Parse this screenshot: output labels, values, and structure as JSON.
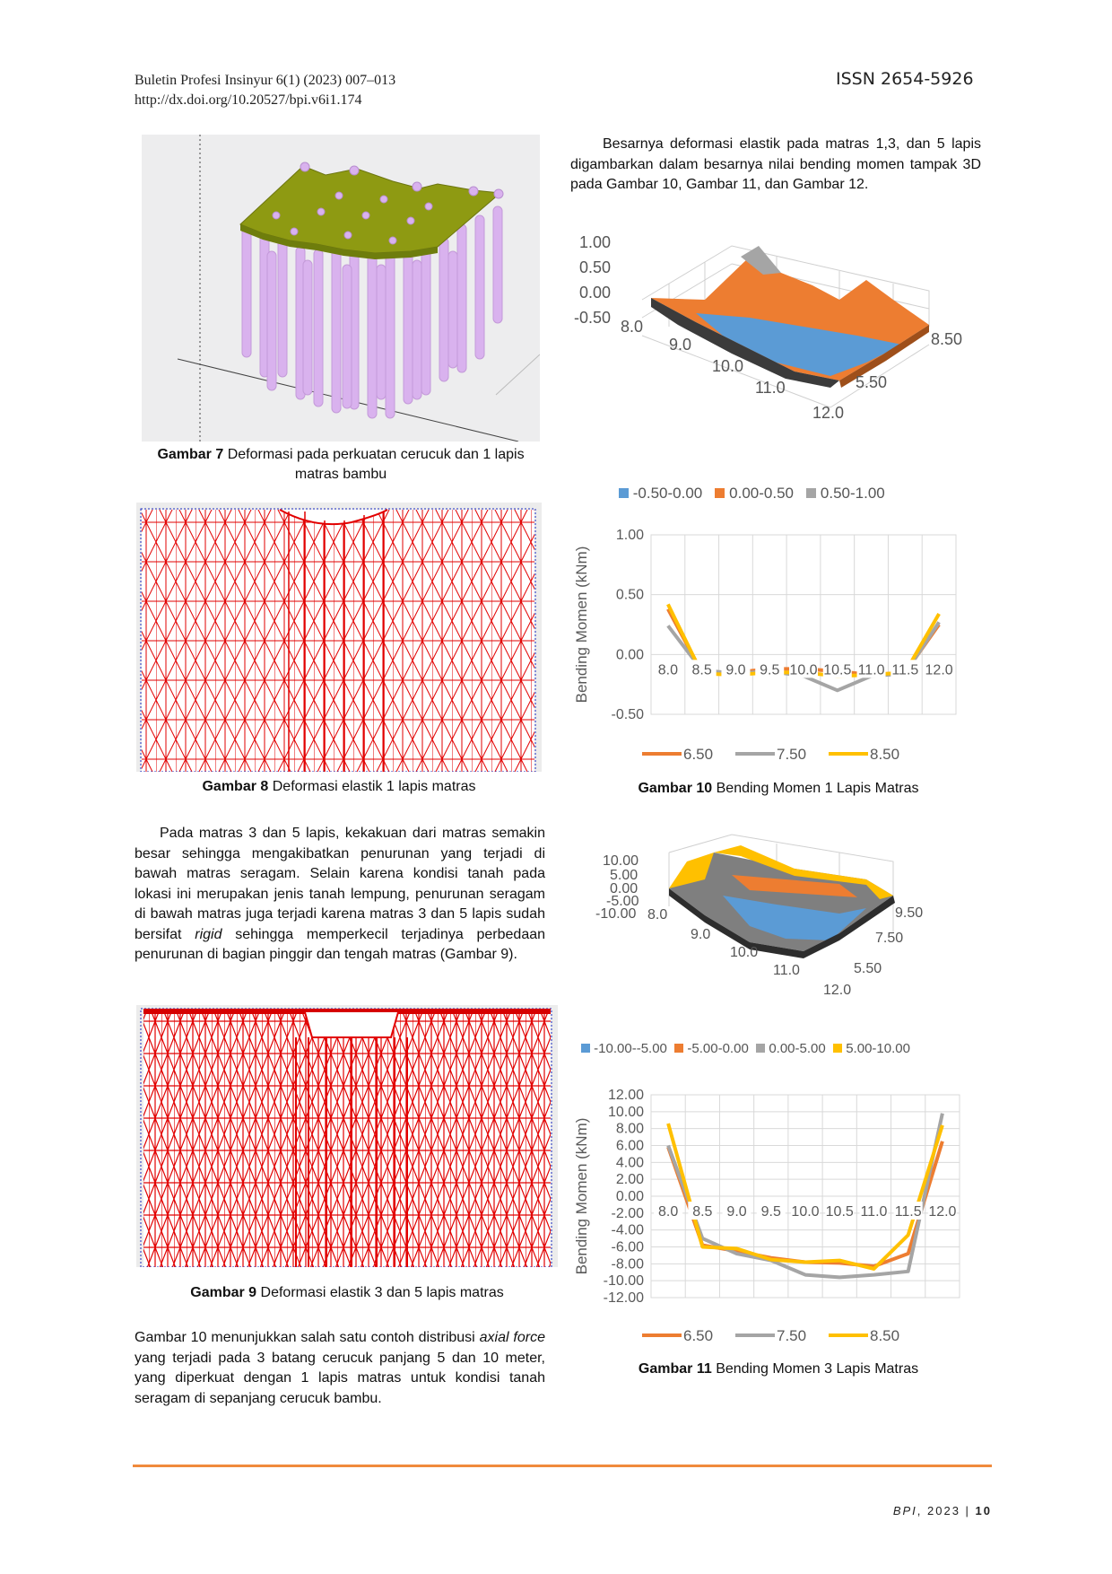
{
  "header": {
    "journal": "Buletin Profesi Insinyur 6(1) (2023) 007–013",
    "doi": "http://dx.doi.org/10.20527/bpi.v6i1.174",
    "issn": "ISSN 2654-5926"
  },
  "left": {
    "fig7_caption_label": "Gambar 7",
    "fig7_caption_text": "Deformasi pada perkuatan cerucuk dan 1 lapis matras bambu",
    "fig8_caption_label": "Gambar 8",
    "fig8_caption_text": "Deformasi elastik 1 lapis matras",
    "para1": "Pada matras 3 dan 5 lapis, kekakuan dari matras semakin besar sehingga mengakibatkan penurunan yang terjadi di bawah matras seragam. Selain karena kondisi tanah pada lokasi ini merupakan jenis tanah lempung, penurunan seragam di bawah matras juga terjadi karena matras 3 dan 5 lapis sudah bersifat",
    "para1_italic": "rigid",
    "para1_end": "sehingga memperkecil terjadinya perbedaan penurunan di bagian pinggir dan tengah matras (Gambar 9).",
    "fig9_caption_label": "Gambar 9",
    "fig9_caption_text": "Deformasi elastik 3 dan 5 lapis matras",
    "para2_a": "Gambar 10 menunjukkan salah satu contoh distribusi",
    "para2_i1": "axial force",
    "para2_b": "yang terjadi pada 3 batang cerucuk panjang 5 dan 10 meter, yang diperkuat dengan 1 lapis matras untuk kondisi tanah seragam di sepanjang cerucuk bambu."
  },
  "right": {
    "intro": "Besarnya deformasi elastik pada matras 1,3, dan 5 lapis digambarkan dalam besarnya nilai bending momen tampak 3D pada Gambar 10, Gambar 11, dan Gambar 12.",
    "fig10_caption_label": "Gambar 10",
    "fig10_caption_text": "Bending Momen 1 Lapis Matras",
    "fig11_caption_label": "Gambar 11",
    "fig11_caption_text": "Bending Momen 3 Lapis Matras",
    "surf1": {
      "z_ticks": [
        "1.00",
        "0.50",
        "0.00",
        "-0.50"
      ],
      "x_ticks": [
        "8.0",
        "9.0",
        "10.0",
        "11.0",
        "12.0"
      ],
      "y_ticks": [
        "8.50",
        "5.50"
      ],
      "legend": [
        "-0.50-0.00",
        "0.00-0.50",
        "0.50-1.00"
      ],
      "colors": [
        "#5b9bd5",
        "#ed7d31",
        "#a5a5a5"
      ]
    },
    "surf2": {
      "z_ticks": [
        "10.00",
        "5.00",
        "0.00",
        "-5.00",
        "-10.00"
      ],
      "x_ticks": [
        "8.0",
        "9.0",
        "10.0",
        "11.0",
        "12.0"
      ],
      "y_ticks": [
        "9.50",
        "7.50",
        "5.50"
      ],
      "legend": [
        "-10.00--5.00",
        "-5.00-0.00",
        "0.00-5.00",
        "5.00-10.00"
      ],
      "colors": [
        "#5b9bd5",
        "#ed7d31",
        "#a5a5a5",
        "#ffc000"
      ]
    }
  },
  "footer": {
    "journal": "BPI",
    "year": ", 2023 | ",
    "page": "10"
  },
  "chart_data": [
    {
      "type": "line",
      "ylabel": "Bending Momen (kNm)",
      "categories": [
        "8.0",
        "8.5",
        "9.0",
        "9.5",
        "10.0",
        "10.5",
        "11.0",
        "11.5",
        "12.0"
      ],
      "ylim": [
        -0.5,
        1.0
      ],
      "yticks": [
        "1.00",
        "0.50",
        "0.00",
        "-0.50"
      ],
      "series": [
        {
          "name": "6.50",
          "color": "#ed7d31",
          "values": [
            0.38,
            -0.15,
            -0.15,
            -0.12,
            -0.12,
            -0.14,
            -0.17,
            -0.15,
            0.25
          ]
        },
        {
          "name": "7.50",
          "color": "#a5a5a5",
          "values": [
            0.24,
            -0.13,
            -0.16,
            -0.14,
            -0.18,
            -0.3,
            -0.18,
            -0.16,
            0.27
          ]
        },
        {
          "name": "8.50",
          "color": "#ffc000",
          "values": [
            0.42,
            -0.16,
            -0.17,
            -0.15,
            -0.15,
            -0.18,
            -0.17,
            -0.15,
            0.34
          ]
        }
      ]
    },
    {
      "type": "line",
      "ylabel": "Bending Momen (kNm)",
      "categories": [
        "8.0",
        "8.5",
        "9.0",
        "9.5",
        "10.0",
        "10.5",
        "11.0",
        "11.5",
        "12.0"
      ],
      "ylim": [
        -12,
        12
      ],
      "yticks": [
        "12.00",
        "10.00",
        "8.00",
        "6.00",
        "4.00",
        "2.00",
        "0.00",
        "-2.00",
        "-4.00",
        "-6.00",
        "-8.00",
        "-10.00",
        "-12.00"
      ],
      "series": [
        {
          "name": "6.50",
          "color": "#ed7d31",
          "values": [
            5.8,
            -5.8,
            -6.5,
            -7.3,
            -7.8,
            -7.9,
            -8.3,
            -6.8,
            6.5
          ]
        },
        {
          "name": "7.50",
          "color": "#a5a5a5",
          "values": [
            6.0,
            -5.0,
            -6.8,
            -7.6,
            -9.3,
            -9.6,
            -9.3,
            -8.9,
            9.8
          ]
        },
        {
          "name": "8.50",
          "color": "#ffc000",
          "values": [
            8.6,
            -6.0,
            -6.2,
            -7.5,
            -7.8,
            -7.6,
            -8.6,
            -4.6,
            8.4
          ]
        }
      ]
    }
  ]
}
